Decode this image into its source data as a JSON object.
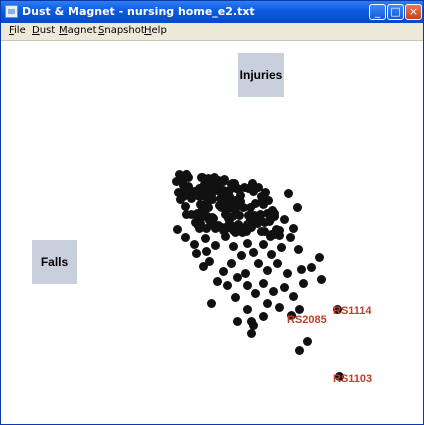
{
  "window": {
    "title": "Dust & Magnet - nursing home_e2.txt",
    "controls": {
      "minimize": "_",
      "maximize": "□",
      "close": "×"
    }
  },
  "menu": [
    {
      "key": "F",
      "rest": "ile"
    },
    {
      "key": "D",
      "rest": "ust"
    },
    {
      "key": "M",
      "rest": "agnet"
    },
    {
      "key": "S",
      "rest": "napshot"
    },
    {
      "key": "H",
      "rest": "elp"
    }
  ],
  "magnets": {
    "injuries": "Injuries",
    "falls": "Falls"
  },
  "dust_labels": {
    "rs1114": "RS1114",
    "rs2085": "RS2085",
    "rs1103": "RS1103"
  },
  "colors": {
    "dust": "#111111",
    "magnet": "#c8cfdd",
    "label": "#c0402a"
  }
}
